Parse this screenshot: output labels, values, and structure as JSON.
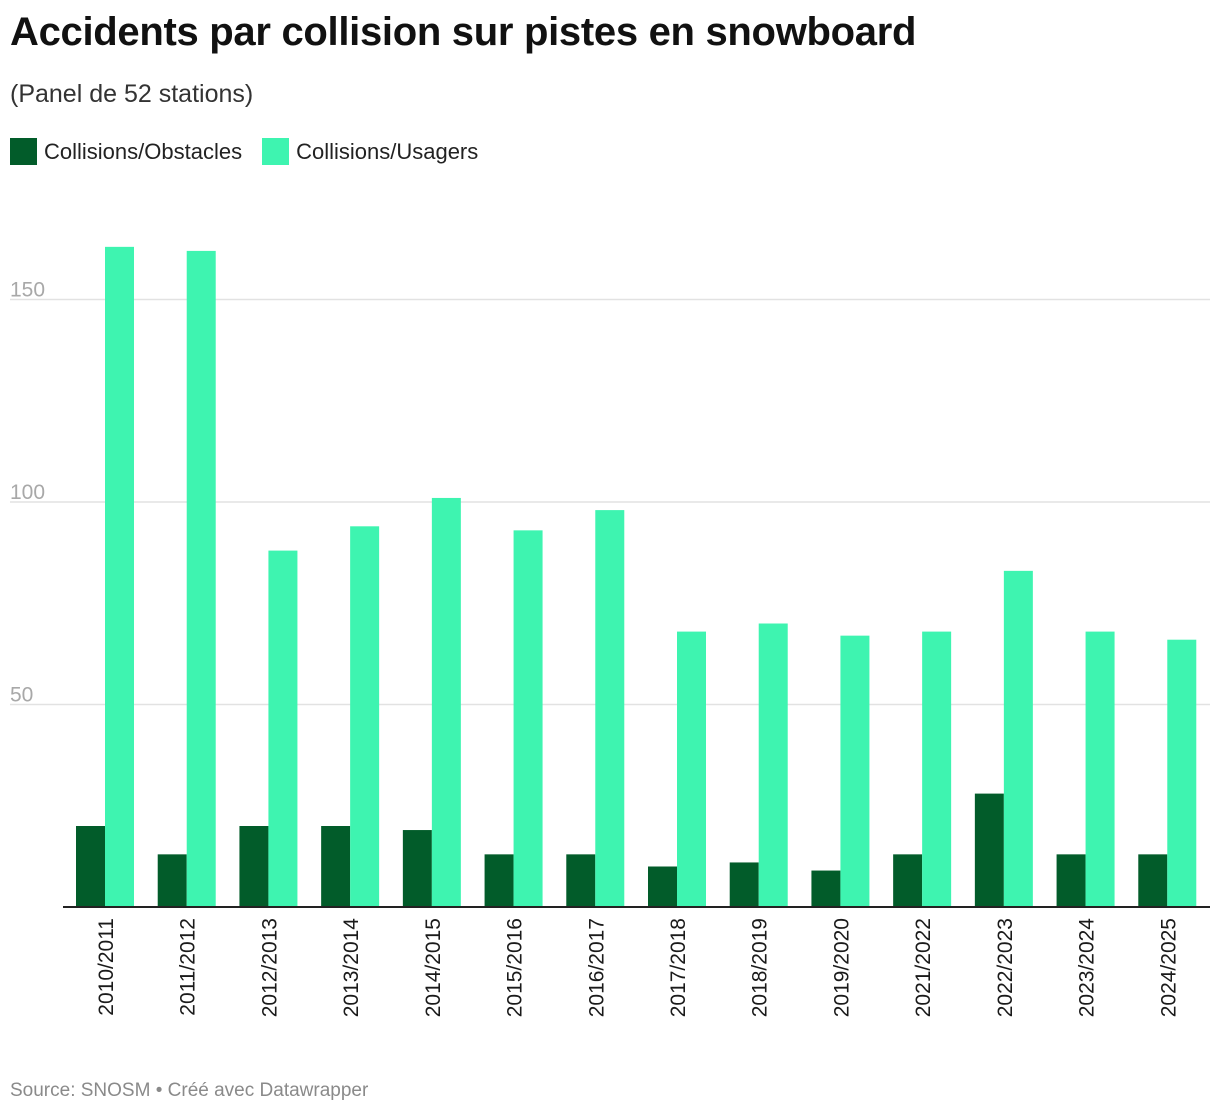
{
  "title": "Accidents par collision sur pistes en snowboard",
  "subtitle": "(Panel de 52 stations)",
  "footer": {
    "source": "Source: SNOSM",
    "separator": " • ",
    "credit": "Créé avec Datawrapper"
  },
  "colors": {
    "obstacles": "#025c2a",
    "usagers": "#3ef4b0",
    "grid": "#e2e2e2",
    "axis": "#222222",
    "tick_label": "#a8a8a8"
  },
  "chart_data": {
    "type": "bar",
    "categories": [
      "2010/2011",
      "2011/2012",
      "2012/2013",
      "2013/2014",
      "2014/2015",
      "2015/2016",
      "2016/2017",
      "2017/2018",
      "2018/2019",
      "2019/2020",
      "2021/2022",
      "2022/2023",
      "2023/2024",
      "2024/2025"
    ],
    "series": [
      {
        "name": "Collisions/Obstacles",
        "values": [
          20,
          13,
          20,
          20,
          19,
          13,
          13,
          10,
          11,
          9,
          13,
          28,
          13,
          13
        ]
      },
      {
        "name": "Collisions/Usagers",
        "values": [
          163,
          162,
          88,
          94,
          101,
          93,
          98,
          68,
          70,
          67,
          68,
          83,
          68,
          66
        ]
      }
    ],
    "yticks": [
      50,
      100,
      150
    ],
    "ylim": [
      0,
      163
    ],
    "grid": true,
    "legend": "top-left"
  }
}
